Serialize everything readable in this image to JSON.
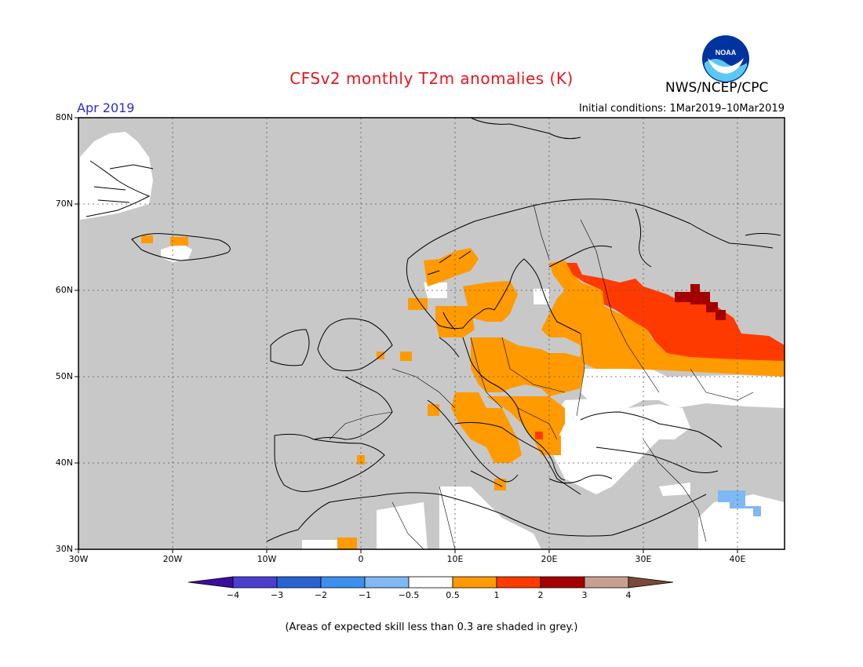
{
  "header": {
    "title": "CFSv2 monthly T2m anomalies (K)",
    "month": "Apr 2019",
    "initial_conditions": "Initial conditions: 1Mar2019–10Mar2019",
    "org": "NWS/NCEP/CPC",
    "logo_text": "NOAA"
  },
  "axes": {
    "lat_labels": [
      "80N",
      "70N",
      "60N",
      "50N",
      "40N",
      "30N"
    ],
    "lon_labels": [
      "30W",
      "20W",
      "10W",
      "0",
      "10E",
      "20E",
      "30E",
      "40E"
    ],
    "lat_range": [
      30,
      80
    ],
    "lon_range": [
      -30,
      45
    ]
  },
  "colorbar": {
    "labels": [
      "−4",
      "−3",
      "−2",
      "−1",
      "−0.5",
      "0.5",
      "1",
      "2",
      "3",
      "4"
    ],
    "colors": [
      "#3b0f9e",
      "#4b3fd2",
      "#2a63d4",
      "#3d8fee",
      "#7fb8f2",
      "#ffffff",
      "#ff9a00",
      "#ff3a00",
      "#a50000",
      "#c8a092",
      "#7a4a3a"
    ]
  },
  "legend_note": "(Areas of expected skill less than 0.3 are shaded in grey.)",
  "colors": {
    "grey_skill": "#c8c8c8",
    "orange": "#ff9a00",
    "red_orange": "#ff3a00",
    "dark_red": "#a50000",
    "light_blue": "#7fb8f2",
    "white": "#ffffff"
  }
}
